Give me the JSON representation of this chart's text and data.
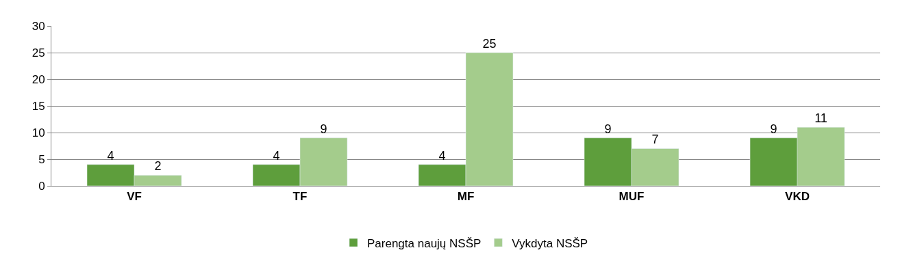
{
  "chart_data": {
    "type": "bar",
    "categories": [
      "VF",
      "TF",
      "MF",
      "MUF",
      "VKD"
    ],
    "series": [
      {
        "name": "Parengta naujų NSŠP",
        "color": "#5e9e3c",
        "values": [
          4,
          4,
          4,
          9,
          9
        ]
      },
      {
        "name": "Vykdyta NSŠP",
        "color": "#a4cc8c",
        "values": [
          2,
          9,
          25,
          7,
          11
        ]
      }
    ],
    "ylim": [
      0,
      30
    ],
    "yticks": [
      0,
      5,
      10,
      15,
      20,
      25,
      30
    ],
    "grid": "y",
    "legend": "bottom",
    "data_labels": true
  }
}
